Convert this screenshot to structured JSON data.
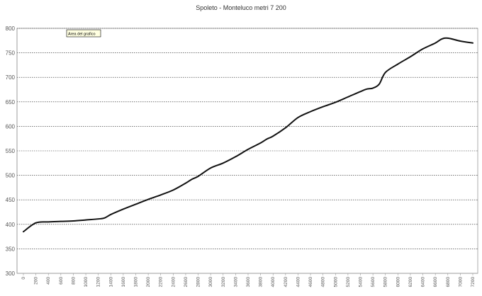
{
  "chart_data": {
    "type": "line",
    "title": "Spoleto - Monteluco metri 7 200",
    "xlabel": "",
    "ylabel": "",
    "ylim": [
      300,
      800
    ],
    "yticks": [
      300,
      350,
      400,
      450,
      500,
      550,
      600,
      650,
      700,
      750,
      800
    ],
    "xlim": [
      0,
      7200
    ],
    "xticks": [
      0,
      200,
      400,
      600,
      800,
      1000,
      1200,
      1400,
      1600,
      1800,
      2000,
      2200,
      2400,
      2600,
      2800,
      3000,
      3200,
      3400,
      3600,
      3800,
      4000,
      4200,
      4400,
      4600,
      4800,
      5000,
      5200,
      5400,
      5600,
      5800,
      6000,
      6200,
      6400,
      6600,
      6800,
      7000,
      7200
    ],
    "grid": true,
    "legend": "none",
    "series": [
      {
        "color": "#111111",
        "x": [
          0,
          200,
          400,
          600,
          800,
          1000,
          1200,
          1300,
          1400,
          1600,
          1800,
          2000,
          2200,
          2400,
          2600,
          2700,
          2800,
          3000,
          3200,
          3400,
          3600,
          3800,
          3900,
          4000,
          4200,
          4400,
          4600,
          4800,
          5000,
          5200,
          5400,
          5500,
          5600,
          5700,
          5800,
          6000,
          6200,
          6400,
          6600,
          6700,
          6800,
          7000,
          7200
        ],
        "y": [
          385,
          403,
          405,
          406,
          407,
          409,
          411,
          413,
          420,
          431,
          441,
          451,
          460,
          470,
          484,
          492,
          498,
          515,
          525,
          538,
          553,
          566,
          574,
          580,
          597,
          618,
          630,
          640,
          649,
          660,
          671,
          676,
          678,
          686,
          710,
          727,
          742,
          758,
          770,
          778,
          780,
          774,
          770
        ]
      }
    ],
    "annotation": "Area del grafico"
  }
}
